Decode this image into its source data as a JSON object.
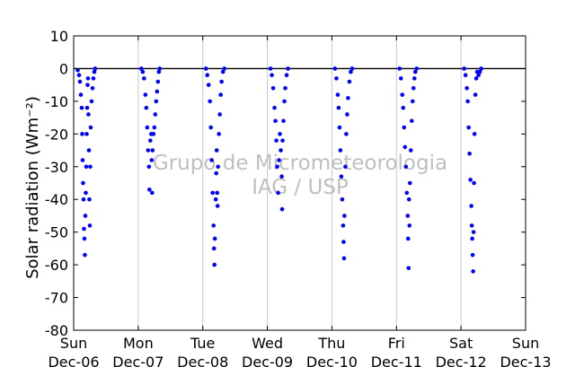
{
  "chart_data": {
    "type": "scatter",
    "title": "",
    "xlabel": "",
    "ylabel": "Solar radiation (Wm⁻²)",
    "ylim": [
      -80,
      10
    ],
    "yticks": [
      10,
      0,
      -10,
      -20,
      -30,
      -40,
      -50,
      -60,
      -70,
      -80
    ],
    "grid": "vertical-at-day-boundaries",
    "legend": "none",
    "xticks": [
      {
        "day": "Sun",
        "date": "Dec-06"
      },
      {
        "day": "Mon",
        "date": "Dec-07"
      },
      {
        "day": "Tue",
        "date": "Dec-08"
      },
      {
        "day": "Wed",
        "date": "Dec-09"
      },
      {
        "day": "Thu",
        "date": "Dec-10"
      },
      {
        "day": "Fri",
        "date": "Dec-11"
      },
      {
        "day": "Sat",
        "date": "Dec-12"
      },
      {
        "day": "Sun",
        "date": "Dec-13"
      }
    ],
    "reference_line_y": 0,
    "point_color": "#0000ff",
    "series": [
      {
        "points": [
          [
            "Dec-06 01:30",
            -0.5
          ],
          [
            "Dec-06 02:00",
            -2
          ],
          [
            "Dec-06 02:20",
            -4
          ],
          [
            "Dec-06 02:40",
            -8
          ],
          [
            "Dec-06 03:00",
            -12
          ],
          [
            "Dec-06 03:10",
            -20
          ],
          [
            "Dec-06 03:20",
            -28
          ],
          [
            "Dec-06 03:30",
            -35
          ],
          [
            "Dec-06 03:40",
            -40
          ],
          [
            "Dec-06 03:50",
            -49
          ],
          [
            "Dec-06 04:00",
            -52
          ],
          [
            "Dec-06 04:10",
            -57
          ],
          [
            "Dec-06 04:20",
            -45
          ],
          [
            "Dec-06 04:30",
            -38
          ],
          [
            "Dec-06 04:40",
            -30
          ],
          [
            "Dec-06 04:50",
            -20
          ],
          [
            "Dec-06 05:00",
            -12
          ],
          [
            "Dec-06 05:10",
            -5
          ],
          [
            "Dec-06 05:20",
            -3
          ],
          [
            "Dec-06 05:30",
            -14
          ],
          [
            "Dec-06 05:40",
            -25
          ],
          [
            "Dec-06 05:50",
            -40
          ],
          [
            "Dec-06 06:00",
            -48
          ],
          [
            "Dec-06 06:10",
            -30
          ],
          [
            "Dec-06 06:20",
            -18
          ],
          [
            "Dec-06 06:40",
            -10
          ],
          [
            "Dec-06 07:00",
            -6
          ],
          [
            "Dec-06 07:20",
            -3
          ],
          [
            "Dec-06 07:40",
            -1
          ],
          [
            "Dec-06 08:00",
            0
          ],
          [
            "Dec-07 01:10",
            0
          ],
          [
            "Dec-07 01:40",
            -1
          ],
          [
            "Dec-07 02:10",
            -3
          ],
          [
            "Dec-07 02:40",
            -8
          ],
          [
            "Dec-07 03:00",
            -12
          ],
          [
            "Dec-07 03:20",
            -18
          ],
          [
            "Dec-07 03:40",
            -25
          ],
          [
            "Dec-07 04:00",
            -30
          ],
          [
            "Dec-07 04:10",
            -37
          ],
          [
            "Dec-07 04:30",
            -22
          ],
          [
            "Dec-07 04:50",
            -20
          ],
          [
            "Dec-07 05:00",
            -28
          ],
          [
            "Dec-07 05:10",
            -38
          ],
          [
            "Dec-07 05:20",
            -25
          ],
          [
            "Dec-07 05:40",
            -20
          ],
          [
            "Dec-07 06:00",
            -18
          ],
          [
            "Dec-07 06:20",
            -14
          ],
          [
            "Dec-07 06:40",
            -10
          ],
          [
            "Dec-07 07:00",
            -7
          ],
          [
            "Dec-07 07:20",
            -4
          ],
          [
            "Dec-07 07:40",
            -1
          ],
          [
            "Dec-07 08:00",
            0
          ],
          [
            "Dec-08 01:10",
            0
          ],
          [
            "Dec-08 01:40",
            -2
          ],
          [
            "Dec-08 02:10",
            -5
          ],
          [
            "Dec-08 02:40",
            -10
          ],
          [
            "Dec-08 03:00",
            -18
          ],
          [
            "Dec-08 03:20",
            -28
          ],
          [
            "Dec-08 03:40",
            -38
          ],
          [
            "Dec-08 04:00",
            -48
          ],
          [
            "Dec-08 04:10",
            -55
          ],
          [
            "Dec-08 04:20",
            -60
          ],
          [
            "Dec-08 04:30",
            -52
          ],
          [
            "Dec-08 04:50",
            -40
          ],
          [
            "Dec-08 05:00",
            -32
          ],
          [
            "Dec-08 05:10",
            -25
          ],
          [
            "Dec-08 05:20",
            -38
          ],
          [
            "Dec-08 05:30",
            -42
          ],
          [
            "Dec-08 05:40",
            -30
          ],
          [
            "Dec-08 06:00",
            -20
          ],
          [
            "Dec-08 06:20",
            -14
          ],
          [
            "Dec-08 06:40",
            -8
          ],
          [
            "Dec-08 07:00",
            -4
          ],
          [
            "Dec-08 07:30",
            -1
          ],
          [
            "Dec-08 08:00",
            0
          ],
          [
            "Dec-09 01:10",
            0
          ],
          [
            "Dec-09 01:40",
            -2
          ],
          [
            "Dec-09 02:10",
            -6
          ],
          [
            "Dec-09 02:40",
            -12
          ],
          [
            "Dec-09 03:00",
            -16
          ],
          [
            "Dec-09 03:20",
            -22
          ],
          [
            "Dec-09 03:40",
            -30
          ],
          [
            "Dec-09 04:00",
            -38
          ],
          [
            "Dec-09 04:20",
            -28
          ],
          [
            "Dec-09 04:40",
            -20
          ],
          [
            "Dec-09 05:00",
            -25
          ],
          [
            "Dec-09 05:20",
            -33
          ],
          [
            "Dec-09 05:30",
            -43
          ],
          [
            "Dec-09 05:40",
            -22
          ],
          [
            "Dec-09 06:00",
            -16
          ],
          [
            "Dec-09 06:20",
            -10
          ],
          [
            "Dec-09 06:40",
            -6
          ],
          [
            "Dec-09 07:10",
            -2
          ],
          [
            "Dec-09 07:40",
            0
          ],
          [
            "Dec-10 01:10",
            0
          ],
          [
            "Dec-10 01:40",
            -3
          ],
          [
            "Dec-10 02:10",
            -8
          ],
          [
            "Dec-10 02:30",
            -12
          ],
          [
            "Dec-10 02:50",
            -18
          ],
          [
            "Dec-10 03:10",
            -25
          ],
          [
            "Dec-10 03:30",
            -33
          ],
          [
            "Dec-10 03:50",
            -40
          ],
          [
            "Dec-10 04:10",
            -48
          ],
          [
            "Dec-10 04:20",
            -53
          ],
          [
            "Dec-10 04:30",
            -58
          ],
          [
            "Dec-10 04:40",
            -45
          ],
          [
            "Dec-10 05:00",
            -30
          ],
          [
            "Dec-10 05:20",
            -20
          ],
          [
            "Dec-10 05:40",
            -14
          ],
          [
            "Dec-10 06:00",
            -9
          ],
          [
            "Dec-10 06:30",
            -4
          ],
          [
            "Dec-10 07:00",
            -1
          ],
          [
            "Dec-10 07:30",
            0
          ],
          [
            "Dec-11 01:10",
            0
          ],
          [
            "Dec-11 01:40",
            -3
          ],
          [
            "Dec-11 02:10",
            -8
          ],
          [
            "Dec-11 02:30",
            -12
          ],
          [
            "Dec-11 02:50",
            -18
          ],
          [
            "Dec-11 03:10",
            -24
          ],
          [
            "Dec-11 03:30",
            -30
          ],
          [
            "Dec-11 03:50",
            -38
          ],
          [
            "Dec-11 04:10",
            -45
          ],
          [
            "Dec-11 04:20",
            -52
          ],
          [
            "Dec-11 04:30",
            -61
          ],
          [
            "Dec-11 04:40",
            -40
          ],
          [
            "Dec-11 04:50",
            -48
          ],
          [
            "Dec-11 05:00",
            -35
          ],
          [
            "Dec-11 05:20",
            -25
          ],
          [
            "Dec-11 05:40",
            -16
          ],
          [
            "Dec-11 06:00",
            -10
          ],
          [
            "Dec-11 06:20",
            -6
          ],
          [
            "Dec-11 06:40",
            -3
          ],
          [
            "Dec-11 07:00",
            -1
          ],
          [
            "Dec-11 07:30",
            0
          ],
          [
            "Dec-12 01:10",
            0
          ],
          [
            "Dec-12 01:40",
            -2
          ],
          [
            "Dec-12 02:10",
            -6
          ],
          [
            "Dec-12 02:30",
            -10
          ],
          [
            "Dec-12 02:50",
            -18
          ],
          [
            "Dec-12 03:10",
            -26
          ],
          [
            "Dec-12 03:30",
            -34
          ],
          [
            "Dec-12 03:50",
            -42
          ],
          [
            "Dec-12 04:00",
            -48
          ],
          [
            "Dec-12 04:10",
            -52
          ],
          [
            "Dec-12 04:20",
            -57
          ],
          [
            "Dec-12 04:30",
            -62
          ],
          [
            "Dec-12 04:40",
            -50
          ],
          [
            "Dec-12 04:50",
            -35
          ],
          [
            "Dec-12 05:00",
            -20
          ],
          [
            "Dec-12 05:20",
            -8
          ],
          [
            "Dec-12 05:40",
            -3
          ],
          [
            "Dec-12 06:00",
            -1
          ],
          [
            "Dec-12 06:30",
            -2
          ],
          [
            "Dec-12 07:00",
            -1
          ],
          [
            "Dec-12 07:30",
            0
          ]
        ]
      }
    ],
    "watermark": [
      "Grupo de Micrometeorologia",
      "IAG / USP"
    ]
  }
}
